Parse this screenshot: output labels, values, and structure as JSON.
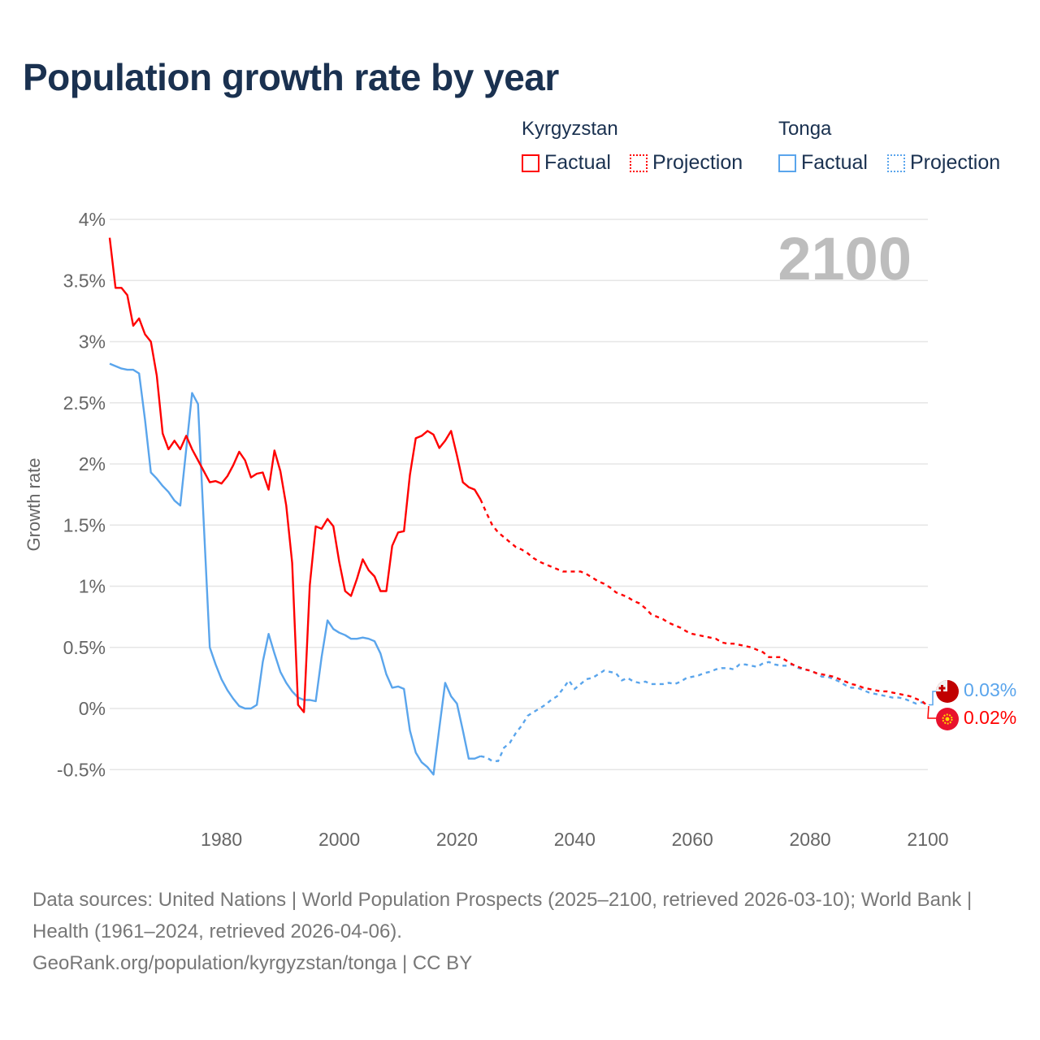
{
  "title": "Population growth rate by year",
  "legend": {
    "groups": [
      {
        "name": "Kyrgyzstan",
        "factual": "Factual",
        "projection": "Projection",
        "color": "#ff0000"
      },
      {
        "name": "Tonga",
        "factual": "Factual",
        "projection": "Projection",
        "color": "#5aa5ec"
      }
    ]
  },
  "current_year": "2100",
  "end_labels": {
    "tonga": "0.03%",
    "kyrgyzstan": "0.02%"
  },
  "footer": {
    "sources": "Data sources: United Nations | World Population Prospects (2025–2100, retrieved 2026-03-10); World Bank | Health (1961–2024, retrieved 2026-04-06).",
    "attribution": "GeoRank.org/population/kyrgyzstan/tonga | CC BY"
  },
  "chart_data": {
    "type": "line",
    "title": "Population growth rate by year",
    "xlabel": "",
    "ylabel": "Growth rate",
    "xlim": [
      1961,
      2100
    ],
    "ylim": [
      -0.5,
      4
    ],
    "x_ticks": [
      1980,
      2000,
      2020,
      2040,
      2060,
      2080,
      2100
    ],
    "y_ticks": [
      -0.5,
      0,
      0.5,
      1,
      1.5,
      2,
      2.5,
      3,
      3.5,
      4
    ],
    "y_tick_labels": [
      "-0.5%",
      "0%",
      "0.5%",
      "1%",
      "1.5%",
      "2%",
      "2.5%",
      "3%",
      "3.5%",
      "4%"
    ],
    "grid": true,
    "factual_start": 1961,
    "projection_start": 2025,
    "series": [
      {
        "name": "Kyrgyzstan Factual",
        "color": "#ff0000",
        "style": "solid",
        "values": [
          3.85,
          3.44,
          3.44,
          3.38,
          3.13,
          3.19,
          3.06,
          3.0,
          2.72,
          2.25,
          2.12,
          2.19,
          2.12,
          2.23,
          2.12,
          2.03,
          1.94,
          1.85,
          1.86,
          1.84,
          1.9,
          1.99,
          2.1,
          2.03,
          1.89,
          1.92,
          1.93,
          1.79,
          2.11,
          1.94,
          1.66,
          1.19,
          0.03,
          -0.03,
          1.01,
          1.49,
          1.47,
          1.55,
          1.49,
          1.2,
          0.96,
          0.92,
          1.06,
          1.22,
          1.13,
          1.08,
          0.96,
          0.96,
          1.33,
          1.44,
          1.45,
          1.91,
          2.21,
          2.23,
          2.27,
          2.24,
          2.13,
          2.19,
          2.27,
          2.07,
          1.85,
          1.81,
          1.79,
          1.71
        ]
      },
      {
        "name": "Kyrgyzstan Projection",
        "color": "#ff0000",
        "style": "dotted",
        "values": [
          1.6,
          1.5,
          1.44,
          1.4,
          1.36,
          1.32,
          1.3,
          1.27,
          1.23,
          1.2,
          1.18,
          1.16,
          1.14,
          1.12,
          1.12,
          1.12,
          1.12,
          1.1,
          1.07,
          1.04,
          1.02,
          0.99,
          0.95,
          0.93,
          0.91,
          0.88,
          0.86,
          0.82,
          0.77,
          0.75,
          0.73,
          0.7,
          0.68,
          0.66,
          0.63,
          0.61,
          0.6,
          0.59,
          0.58,
          0.57,
          0.54,
          0.53,
          0.53,
          0.52,
          0.51,
          0.5,
          0.48,
          0.46,
          0.42,
          0.42,
          0.42,
          0.39,
          0.36,
          0.34,
          0.32,
          0.31,
          0.29,
          0.28,
          0.27,
          0.26,
          0.24,
          0.22,
          0.2,
          0.19,
          0.17,
          0.16,
          0.15,
          0.14,
          0.14,
          0.13,
          0.12,
          0.11,
          0.1,
          0.08,
          0.06,
          0.02
        ]
      },
      {
        "name": "Tonga Factual",
        "color": "#5aa5ec",
        "style": "solid",
        "values": [
          2.82,
          2.8,
          2.78,
          2.77,
          2.77,
          2.74,
          2.36,
          1.93,
          1.88,
          1.82,
          1.77,
          1.7,
          1.66,
          2.12,
          2.58,
          2.49,
          1.5,
          0.5,
          0.36,
          0.24,
          0.15,
          0.08,
          0.02,
          0,
          0,
          0.03,
          0.38,
          0.61,
          0.45,
          0.3,
          0.21,
          0.14,
          0.09,
          0.07,
          0.07,
          0.06,
          0.42,
          0.72,
          0.65,
          0.62,
          0.6,
          0.57,
          0.57,
          0.58,
          0.57,
          0.55,
          0.45,
          0.28,
          0.17,
          0.18,
          0.16,
          -0.18,
          -0.36,
          -0.44,
          -0.48,
          -0.54,
          -0.16,
          0.21,
          0.1,
          0.04,
          -0.18,
          -0.41,
          -0.41,
          -0.39
        ]
      },
      {
        "name": "Tonga Projection",
        "color": "#5aa5ec",
        "style": "dotted",
        "values": [
          -0.4,
          -0.43,
          -0.43,
          -0.32,
          -0.28,
          -0.2,
          -0.14,
          -0.06,
          -0.03,
          0,
          0.03,
          0.07,
          0.1,
          0.16,
          0.23,
          0.16,
          0.2,
          0.24,
          0.25,
          0.28,
          0.31,
          0.3,
          0.29,
          0.23,
          0.25,
          0.22,
          0.21,
          0.22,
          0.2,
          0.2,
          0.2,
          0.21,
          0.2,
          0.22,
          0.25,
          0.26,
          0.27,
          0.29,
          0.3,
          0.32,
          0.33,
          0.33,
          0.32,
          0.36,
          0.36,
          0.35,
          0.34,
          0.37,
          0.38,
          0.36,
          0.35,
          0.35,
          0.36,
          0.33,
          0.32,
          0.31,
          0.29,
          0.26,
          0.26,
          0.24,
          0.22,
          0.19,
          0.17,
          0.17,
          0.15,
          0.13,
          0.12,
          0.11,
          0.1,
          0.09,
          0.09,
          0.08,
          0.06,
          0.04,
          0.05,
          0.03
        ]
      }
    ]
  }
}
